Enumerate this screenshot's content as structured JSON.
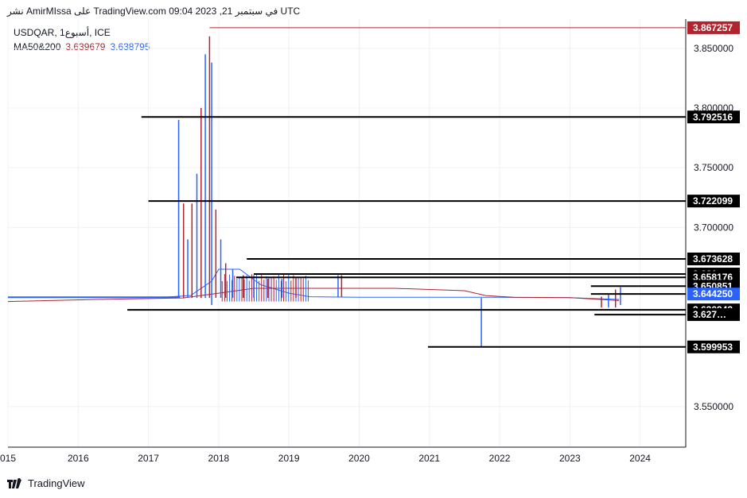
{
  "header": {
    "published": "نشر AmirMIssa على TradingView.com في سبتمبر 21, 2023 09:04 UTC",
    "symbol_line": "USDQAR, 1أسبوع, ICE",
    "ma_label": "MA50&200",
    "ma50_value": "3.639679",
    "ma200_value": "3.638795"
  },
  "footer": {
    "brand": "TradingView"
  },
  "colors": {
    "price_up": "#b2232e",
    "price_down": "#2962ff",
    "ma50": "#2962ff",
    "ma200": "#b2232e",
    "hline": "#000000",
    "current_price_label": "#2962ff",
    "high_label": "#b2232e"
  },
  "chart_data": {
    "type": "line",
    "title": "USDQAR, 1أسبوع, ICE",
    "x_range": [
      2015.0,
      2024.65
    ],
    "ylim": [
      3.516,
      3.8745
    ],
    "x_ticks": [
      "015",
      "2016",
      "2017",
      "2018",
      "2019",
      "2020",
      "2021",
      "2022",
      "2023",
      "2024"
    ],
    "x_tick_values": [
      2015.0,
      2016.0,
      2017.0,
      2018.0,
      2019.0,
      2020.0,
      2021.0,
      2022.0,
      2023.0,
      2024.0
    ],
    "y_ticks": [
      "3.850000",
      "3.800000",
      "3.750000",
      "3.700000",
      "3.550000"
    ],
    "y_tick_values": [
      3.85,
      3.8,
      3.75,
      3.7,
      3.55
    ],
    "grid": true,
    "spikes": [
      {
        "x": 2017.43,
        "low": 3.641,
        "high": 3.79
      },
      {
        "x": 2017.5,
        "low": 3.641,
        "high": 3.72
      },
      {
        "x": 2017.56,
        "low": 3.641,
        "high": 3.69
      },
      {
        "x": 2017.62,
        "low": 3.641,
        "high": 3.72
      },
      {
        "x": 2017.69,
        "low": 3.641,
        "high": 3.745
      },
      {
        "x": 2017.75,
        "low": 3.641,
        "high": 3.8
      },
      {
        "x": 2017.81,
        "low": 3.641,
        "high": 3.845
      },
      {
        "x": 2017.87,
        "low": 3.641,
        "high": 3.86
      },
      {
        "x": 2017.9,
        "low": 3.635,
        "high": 3.838
      },
      {
        "x": 2017.96,
        "low": 3.641,
        "high": 3.715
      },
      {
        "x": 2018.03,
        "low": 3.641,
        "high": 3.69
      },
      {
        "x": 2018.1,
        "low": 3.641,
        "high": 3.67
      },
      {
        "x": 2018.2,
        "low": 3.641,
        "high": 3.665
      },
      {
        "x": 2018.35,
        "low": 3.641,
        "high": 3.66
      },
      {
        "x": 2018.5,
        "low": 3.641,
        "high": 3.66
      },
      {
        "x": 2018.7,
        "low": 3.641,
        "high": 3.657
      },
      {
        "x": 2018.9,
        "low": 3.641,
        "high": 3.657
      },
      {
        "x": 2019.1,
        "low": 3.641,
        "high": 3.658
      },
      {
        "x": 2019.7,
        "low": 3.642,
        "high": 3.66
      },
      {
        "x": 2019.75,
        "low": 3.642,
        "high": 3.66
      },
      {
        "x": 2021.74,
        "low": 3.6,
        "high": 3.641
      },
      {
        "x": 2023.45,
        "low": 3.633,
        "high": 3.642
      },
      {
        "x": 2023.55,
        "low": 3.633,
        "high": 3.645
      },
      {
        "x": 2023.65,
        "low": 3.633,
        "high": 3.648
      },
      {
        "x": 2023.72,
        "low": 3.635,
        "high": 3.65
      }
    ],
    "series": [
      {
        "name": "MA50",
        "color": "#2962ff",
        "x": [
          2015.0,
          2017.2,
          2017.6,
          2017.9,
          2018.0,
          2018.3,
          2018.6,
          2019.0,
          2019.3,
          2020.0,
          2021.0,
          2022.0,
          2023.0,
          2023.7
        ],
        "y": [
          3.6415,
          3.6415,
          3.643,
          3.655,
          3.665,
          3.665,
          3.652,
          3.645,
          3.642,
          3.6415,
          3.6415,
          3.6415,
          3.6412,
          3.6397
        ]
      },
      {
        "name": "MA200",
        "color": "#b2232e",
        "x": [
          2015.0,
          2016.5,
          2017.5,
          2018.0,
          2018.5,
          2019.5,
          2020.5,
          2021.5,
          2021.8,
          2022.2,
          2023.0,
          2023.7
        ],
        "y": [
          3.638,
          3.64,
          3.641,
          3.645,
          3.649,
          3.649,
          3.649,
          3.647,
          3.643,
          3.6415,
          3.6412,
          3.6388
        ]
      }
    ],
    "horizontal_levels": [
      {
        "value": 3.867257,
        "label": "3.867257",
        "from_x": 2017.87,
        "kind": "high"
      },
      {
        "value": 3.792516,
        "label": "3.792516",
        "from_x": 2016.9,
        "kind": "level"
      },
      {
        "value": 3.722099,
        "label": "3.722099",
        "from_x": 2017.0,
        "kind": "level"
      },
      {
        "value": 3.673628,
        "label": "3.673628",
        "from_x": 2018.4,
        "kind": "level"
      },
      {
        "value": 3.661,
        "label": "3.661…",
        "from_x": 2018.5,
        "kind": "level"
      },
      {
        "value": 3.658176,
        "label": "3.658176",
        "from_x": 2018.25,
        "kind": "level"
      },
      {
        "value": 3.650851,
        "label": "3.650851",
        "from_x": 2023.3,
        "kind": "level"
      },
      {
        "value": 3.64425,
        "label": "3.644250",
        "from_x": 2023.3,
        "kind": "current"
      },
      {
        "value": 3.630942,
        "label": "3.630942",
        "from_x": 2016.7,
        "kind": "level"
      },
      {
        "value": 3.627,
        "label": "3.627…",
        "from_x": 2023.35,
        "kind": "level"
      },
      {
        "value": 3.599953,
        "label": "3.599953",
        "from_x": 2020.98,
        "kind": "level"
      }
    ]
  }
}
